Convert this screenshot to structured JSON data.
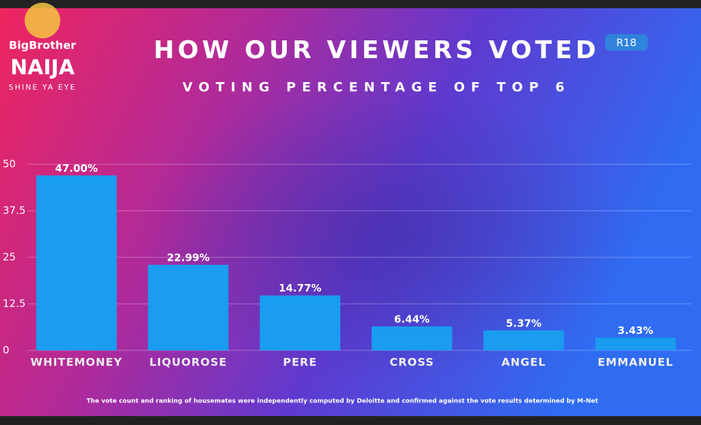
{
  "logo": [
    "BigBrother",
    "NAIJA",
    "SHINE YA EYE"
  ],
  "badge": "R18",
  "chart_data": {
    "type": "bar",
    "title": "HOW OUR VIEWERS VOTED",
    "subtitle": "VOTING PERCENTAGE OF TOP 6",
    "categories": [
      "WHITEMONEY",
      "LIQUOROSE",
      "PERE",
      "CROSS",
      "ANGEL",
      "EMMANUEL"
    ],
    "values": [
      47.0,
      22.99,
      14.77,
      6.44,
      5.37,
      3.43
    ],
    "value_labels": [
      "47.00%",
      "22.99%",
      "14.77%",
      "6.44%",
      "5.37%",
      "3.43%"
    ],
    "color": "#1a9cf0",
    "ylim": [
      0,
      50
    ],
    "yticks": [
      0,
      12.5,
      25,
      37.5,
      50
    ],
    "grid": true,
    "footnote": "The vote count and ranking of housemates were independently computed by Deloitte and confirmed against the vote results determined by M-Net"
  }
}
